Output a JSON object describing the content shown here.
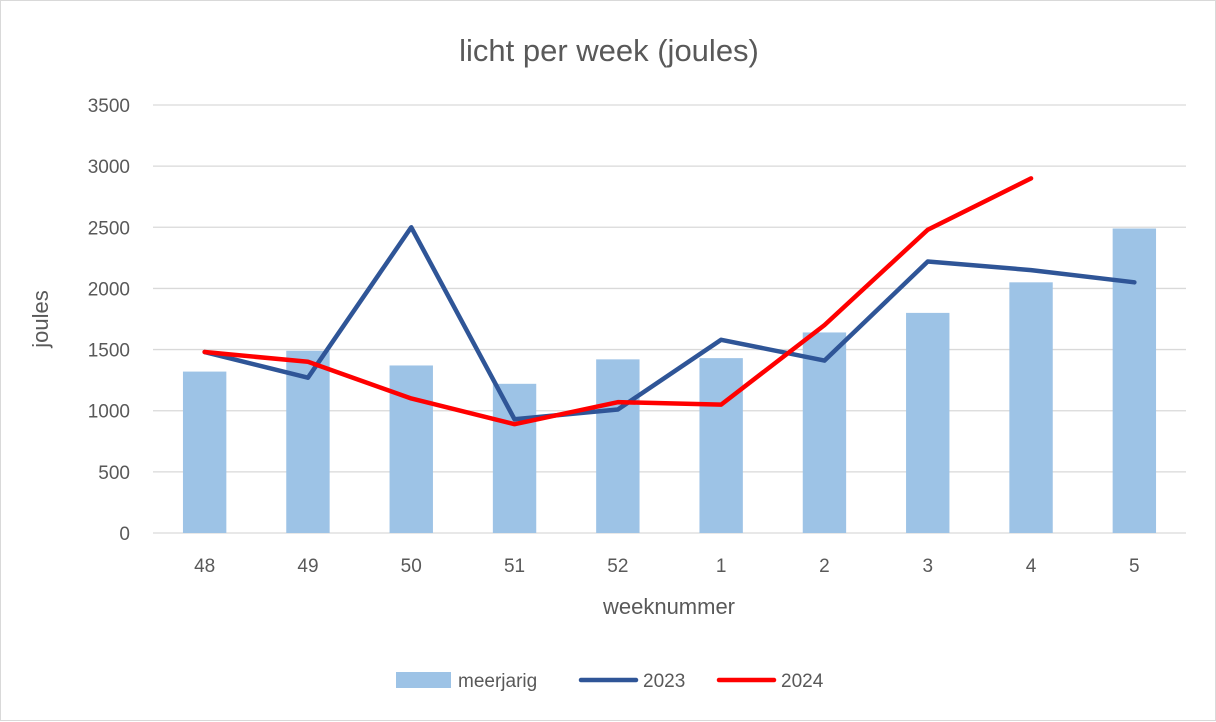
{
  "chart_data": {
    "type": "bar",
    "title": "licht per week (joules)",
    "xlabel": "weeknummer",
    "ylabel": "joules",
    "categories": [
      "48",
      "49",
      "50",
      "51",
      "52",
      "1",
      "2",
      "3",
      "4",
      "5"
    ],
    "ylim": [
      0,
      3500
    ],
    "yticks": [
      "0",
      "500",
      "1000",
      "1500",
      "2000",
      "2500",
      "3000",
      "3500"
    ],
    "grid": true,
    "legend_position": "bottom",
    "series": [
      {
        "name": "meerjarig",
        "kind": "bar",
        "color": "#9dc3e6",
        "values": [
          1320,
          1490,
          1370,
          1220,
          1420,
          1430,
          1640,
          1800,
          2050,
          2490
        ]
      },
      {
        "name": "2023",
        "kind": "line",
        "color": "#2f5597",
        "values": [
          1480,
          1270,
          2500,
          930,
          1010,
          1580,
          1410,
          2220,
          2150,
          2050
        ]
      },
      {
        "name": "2024",
        "kind": "line",
        "color": "#ff0000",
        "values": [
          1480,
          1400,
          1100,
          890,
          1070,
          1050,
          1700,
          2480,
          2900,
          null
        ]
      }
    ]
  }
}
